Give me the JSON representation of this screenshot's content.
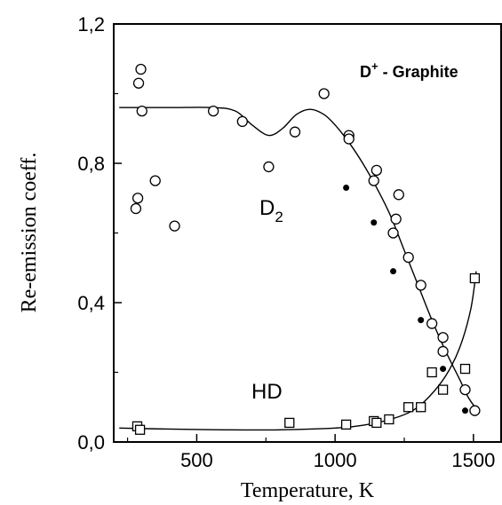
{
  "chart_data": {
    "type": "scatter",
    "title": "D",
    "title_sup": "+",
    "title_rest": " - Graphite",
    "xlabel": "Temperature, K",
    "ylabel": "Re-emission coeff.",
    "xlim": [
      200,
      1600
    ],
    "ylim": [
      0,
      1.2
    ],
    "x_ticks": [
      500,
      1000,
      1500
    ],
    "y_ticks": [
      0,
      0.4,
      0.8,
      1.2
    ],
    "y_tick_labels": [
      "0,0",
      "0,4",
      "0,8",
      "1,2"
    ],
    "grid": false,
    "labels": {
      "d2_main": "D",
      "d2_sub": "2",
      "hd": "HD"
    },
    "series": [
      {
        "marker": "open-circle",
        "points": [
          [
            280,
            0.67
          ],
          [
            287,
            0.7
          ],
          [
            290,
            1.03
          ],
          [
            298,
            1.07
          ],
          [
            302,
            0.95
          ],
          [
            350,
            0.75
          ],
          [
            420,
            0.62
          ],
          [
            560,
            0.95
          ],
          [
            665,
            0.92
          ],
          [
            760,
            0.79
          ],
          [
            855,
            0.89
          ],
          [
            960,
            1.0
          ],
          [
            1050,
            0.88
          ],
          [
            1050,
            0.87
          ],
          [
            1140,
            0.75
          ],
          [
            1150,
            0.78
          ],
          [
            1220,
            0.64
          ],
          [
            1210,
            0.6
          ],
          [
            1230,
            0.71
          ],
          [
            1265,
            0.53
          ],
          [
            1310,
            0.45
          ],
          [
            1350,
            0.34
          ],
          [
            1390,
            0.3
          ],
          [
            1390,
            0.26
          ],
          [
            1470,
            0.15
          ],
          [
            1505,
            0.09
          ]
        ]
      },
      {
        "marker": "filled-circle",
        "points": [
          [
            1040,
            0.73
          ],
          [
            1140,
            0.63
          ],
          [
            1210,
            0.49
          ],
          [
            1310,
            0.35
          ],
          [
            1390,
            0.21
          ],
          [
            1470,
            0.09
          ]
        ]
      },
      {
        "marker": "open-square",
        "points": [
          [
            285,
            0.045
          ],
          [
            295,
            0.035
          ],
          [
            835,
            0.055
          ],
          [
            1040,
            0.05
          ],
          [
            1140,
            0.06
          ],
          [
            1150,
            0.055
          ],
          [
            1195,
            0.065
          ],
          [
            1265,
            0.1
          ],
          [
            1310,
            0.1
          ],
          [
            1350,
            0.2
          ],
          [
            1390,
            0.15
          ],
          [
            1470,
            0.21
          ],
          [
            1505,
            0.47
          ]
        ]
      }
    ],
    "fit_curves": [
      {
        "for": "D2",
        "points": [
          [
            220,
            0.96
          ],
          [
            400,
            0.96
          ],
          [
            560,
            0.96
          ],
          [
            640,
            0.95
          ],
          [
            700,
            0.91
          ],
          [
            760,
            0.88
          ],
          [
            810,
            0.9
          ],
          [
            860,
            0.94
          ],
          [
            910,
            0.955
          ],
          [
            960,
            0.94
          ],
          [
            1000,
            0.91
          ],
          [
            1050,
            0.86
          ],
          [
            1100,
            0.8
          ],
          [
            1150,
            0.73
          ],
          [
            1200,
            0.65
          ],
          [
            1250,
            0.55
          ],
          [
            1300,
            0.45
          ],
          [
            1350,
            0.35
          ],
          [
            1400,
            0.26
          ],
          [
            1450,
            0.18
          ],
          [
            1480,
            0.13
          ],
          [
            1510,
            0.095
          ]
        ]
      },
      {
        "for": "HD",
        "points": [
          [
            220,
            0.04
          ],
          [
            400,
            0.037
          ],
          [
            600,
            0.035
          ],
          [
            800,
            0.035
          ],
          [
            1000,
            0.04
          ],
          [
            1100,
            0.048
          ],
          [
            1200,
            0.065
          ],
          [
            1280,
            0.09
          ],
          [
            1340,
            0.13
          ],
          [
            1400,
            0.19
          ],
          [
            1450,
            0.27
          ],
          [
            1490,
            0.38
          ],
          [
            1510,
            0.49
          ]
        ]
      }
    ]
  }
}
